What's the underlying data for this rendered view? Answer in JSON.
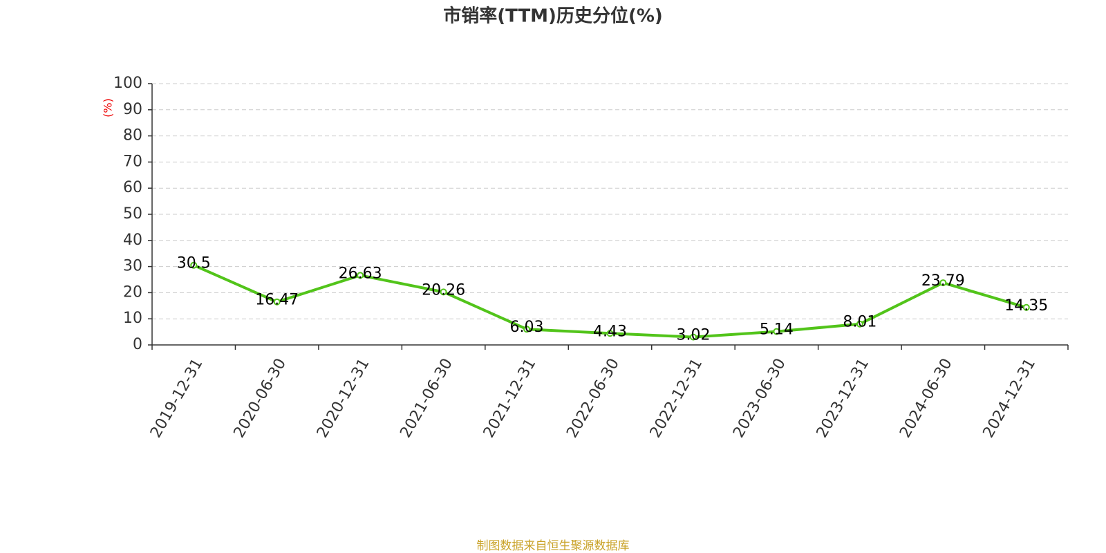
{
  "chart_data": {
    "type": "line",
    "title": "市销率(TTM)历史分位(%)",
    "y_label": "(%)",
    "categories": [
      "2019-12-31",
      "2020-06-30",
      "2020-12-31",
      "2021-06-30",
      "2021-12-31",
      "2022-06-30",
      "2022-12-31",
      "2023-06-30",
      "2023-12-31",
      "2024-06-30",
      "2024-12-31"
    ],
    "values": [
      30.5,
      16.47,
      26.63,
      20.26,
      6.03,
      4.43,
      3.02,
      5.14,
      8.01,
      23.79,
      14.35
    ],
    "color": "#52c41a",
    "ylim": [
      0,
      100
    ],
    "yticks": [
      0,
      10,
      20,
      30,
      40,
      50,
      60,
      70,
      80,
      90,
      100
    ],
    "grid": true,
    "source": "制图数据来自恒生聚源数据库"
  }
}
